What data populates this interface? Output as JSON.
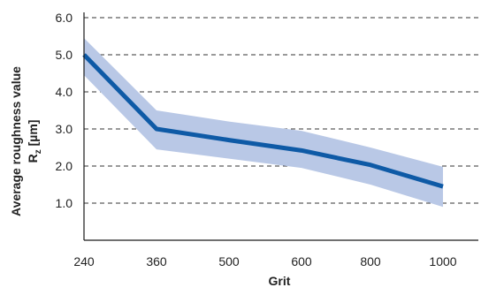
{
  "chart_data": {
    "type": "line",
    "xlabel": "Grit",
    "ylabel_line1": "Average roughness value",
    "ylabel_line2_base": "R",
    "ylabel_line2_sub": "z",
    "ylabel_line2_unit": " [µm]",
    "categories": [
      "240",
      "360",
      "500",
      "600",
      "800",
      "1000"
    ],
    "series": [
      {
        "values": [
          5.0,
          3.0,
          2.7,
          2.42,
          2.03,
          1.45
        ],
        "band_upper": [
          5.45,
          3.5,
          3.2,
          2.95,
          2.5,
          1.98
        ],
        "band_lower": [
          4.45,
          2.45,
          2.2,
          1.95,
          1.5,
          0.9
        ]
      }
    ],
    "yticks": [
      "6.0",
      "5.0",
      "4.0",
      "3.0",
      "2.0",
      "1.0"
    ],
    "ylim": [
      0,
      6
    ],
    "grid": "horizontal dashed",
    "colors": {
      "line": "#0e5aa6",
      "band": "#b9c8e6",
      "axis": "#1a1a1a",
      "grid": "#333333",
      "text": "#222222"
    }
  }
}
